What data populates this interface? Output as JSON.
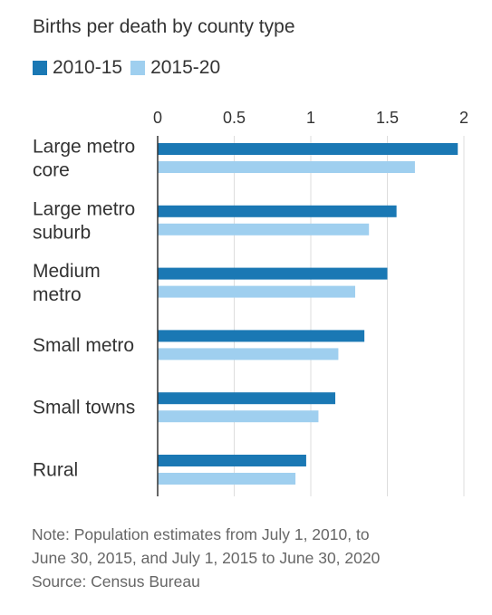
{
  "chart_data": {
    "type": "bar",
    "orientation": "horizontal",
    "title": "Births per death by county type",
    "categories": [
      [
        "Large metro",
        "core"
      ],
      [
        "Large metro",
        "suburb"
      ],
      [
        "Medium",
        "metro"
      ],
      [
        "Small metro"
      ],
      [
        "Small towns"
      ],
      [
        "Rural"
      ]
    ],
    "series": [
      {
        "name": "2010-15",
        "color": "#1a78b4",
        "values": [
          1.96,
          1.56,
          1.5,
          1.35,
          1.16,
          0.97
        ]
      },
      {
        "name": "2015-20",
        "color": "#9fcfef",
        "values": [
          1.68,
          1.38,
          1.29,
          1.18,
          1.05,
          0.9
        ]
      }
    ],
    "xlim": [
      0,
      2
    ],
    "xticks": [
      0,
      0.5,
      1,
      1.5,
      2
    ],
    "xtick_labels": [
      "0",
      "0.5",
      "1",
      "1.5",
      "2"
    ],
    "grid": true,
    "legend_position": "top-left"
  },
  "footer": {
    "note_lines": [
      "Note: Population estimates from July 1, 2010, to",
      "June 30, 2015, and July 1, 2015 to June 30, 2020"
    ],
    "source": "Source: Census Bureau"
  }
}
